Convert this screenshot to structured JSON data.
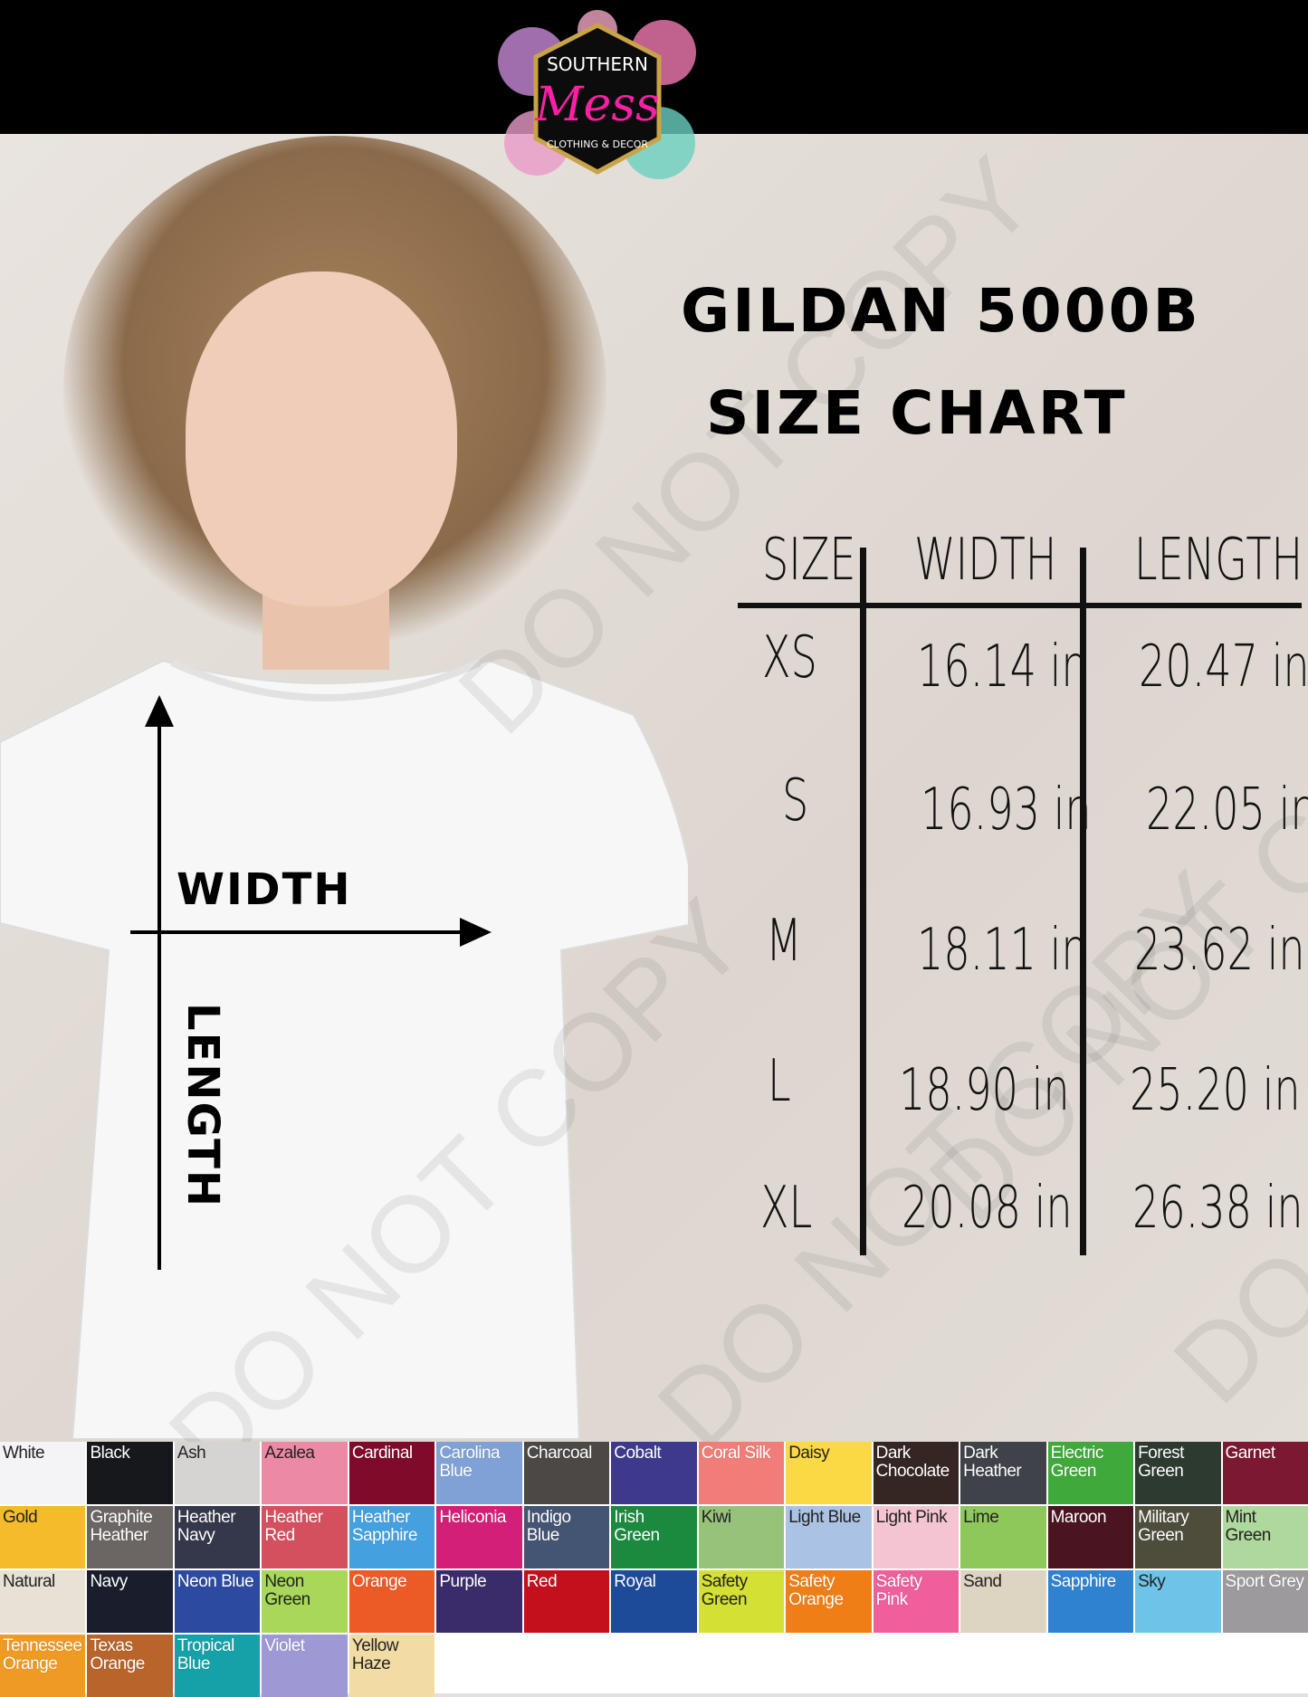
{
  "brand": {
    "line1": "SOUTHERN",
    "line2": "Mess",
    "line3": "CLOTHING & DECOR"
  },
  "title": {
    "line1": "GILDAN 5000B",
    "line2": "SIZE CHART"
  },
  "diagram": {
    "width_label": "WIDTH",
    "length_label": "LENGTH"
  },
  "watermark": "DO NOT COPY",
  "table": {
    "headers": [
      "SIZE",
      "WIDTH",
      "LENGTH"
    ],
    "rows": [
      {
        "size": "XS",
        "width": "16.14 in",
        "length": "20.47 in"
      },
      {
        "size": "S",
        "width": "16.93 in",
        "length": "22.05 in"
      },
      {
        "size": "M",
        "width": "18.11 in",
        "length": "23.62 in"
      },
      {
        "size": "L",
        "width": "18.90 in",
        "length": "25.20 in"
      },
      {
        "size": "XL",
        "width": "20.08 in",
        "length": "26.38 in"
      }
    ]
  },
  "colors": [
    {
      "name": "White",
      "hex": "#f4f4f6",
      "dark": true
    },
    {
      "name": "Black",
      "hex": "#16181c"
    },
    {
      "name": "Ash",
      "hex": "#d6d4d2",
      "dark": true
    },
    {
      "name": "Azalea",
      "hex": "#ec8aa6",
      "dark": true
    },
    {
      "name": "Cardinal",
      "hex": "#7f0a2a"
    },
    {
      "name": "Carolina Blue",
      "hex": "#7fa1d6"
    },
    {
      "name": "Charcoal",
      "hex": "#4c4846"
    },
    {
      "name": "Cobalt",
      "hex": "#3d3a8e"
    },
    {
      "name": "Coral Silk",
      "hex": "#f17d78"
    },
    {
      "name": "Daisy",
      "hex": "#fbd945",
      "dark": true
    },
    {
      "name": "Dark Chocolate",
      "hex": "#352624"
    },
    {
      "name": "Dark Heather",
      "hex": "#3f4248"
    },
    {
      "name": "Electric Green",
      "hex": "#3faa3b"
    },
    {
      "name": "Forest Green",
      "hex": "#2d3a30"
    },
    {
      "name": "Garnet",
      "hex": "#7c1830"
    },
    {
      "name": "Gold",
      "hex": "#f6bb2a",
      "dark": true
    },
    {
      "name": "Graphite Heather",
      "hex": "#6b6663"
    },
    {
      "name": "Heather Navy",
      "hex": "#35384a"
    },
    {
      "name": "Heather Red",
      "hex": "#d4505f"
    },
    {
      "name": "Heather Sapphire",
      "hex": "#45a0e0"
    },
    {
      "name": "Heliconia",
      "hex": "#d41f78"
    },
    {
      "name": "Indigo Blue",
      "hex": "#445473"
    },
    {
      "name": "Irish Green",
      "hex": "#1b8a3f"
    },
    {
      "name": "Kiwi",
      "hex": "#97c27a",
      "dark": true
    },
    {
      "name": "Light Blue",
      "hex": "#aac3e4",
      "dark": true
    },
    {
      "name": "Light Pink",
      "hex": "#f4c4d2",
      "dark": true
    },
    {
      "name": "Lime",
      "hex": "#8fc85a",
      "dark": true
    },
    {
      "name": "Maroon",
      "hex": "#4a1420"
    },
    {
      "name": "Military Green",
      "hex": "#4e4d3c"
    },
    {
      "name": "Mint Green",
      "hex": "#aed89c",
      "dark": true
    },
    {
      "name": "Natural",
      "hex": "#e8e2d6",
      "dark": true
    },
    {
      "name": "Navy",
      "hex": "#1a1e2c"
    },
    {
      "name": "Neon Blue",
      "hex": "#2c4aa0"
    },
    {
      "name": "Neon Green",
      "hex": "#a8d75a",
      "dark": true
    },
    {
      "name": "Orange",
      "hex": "#ec5a26"
    },
    {
      "name": "Purple",
      "hex": "#3a2c6a"
    },
    {
      "name": "Red",
      "hex": "#c4101c"
    },
    {
      "name": "Royal",
      "hex": "#1e4a9a"
    },
    {
      "name": "Safety Green",
      "hex": "#d4e034",
      "dark": true
    },
    {
      "name": "Safety Orange",
      "hex": "#f07e16"
    },
    {
      "name": "Safety Pink",
      "hex": "#ee5f9c"
    },
    {
      "name": "Sand",
      "hex": "#ded4c2",
      "dark": true
    },
    {
      "name": "Sapphire",
      "hex": "#2f82cf"
    },
    {
      "name": "Sky",
      "hex": "#6ec4e8",
      "dark": true
    },
    {
      "name": "Sport Grey",
      "hex": "#9c9a9c"
    },
    {
      "name": "Tennessee Orange",
      "hex": "#ef9a24"
    },
    {
      "name": "Texas Orange",
      "hex": "#b8642a"
    },
    {
      "name": "Tropical Blue",
      "hex": "#16a0a8"
    },
    {
      "name": "Violet",
      "hex": "#9e98d4"
    },
    {
      "name": "Yellow Haze",
      "hex": "#f2dca4",
      "dark": true
    }
  ]
}
